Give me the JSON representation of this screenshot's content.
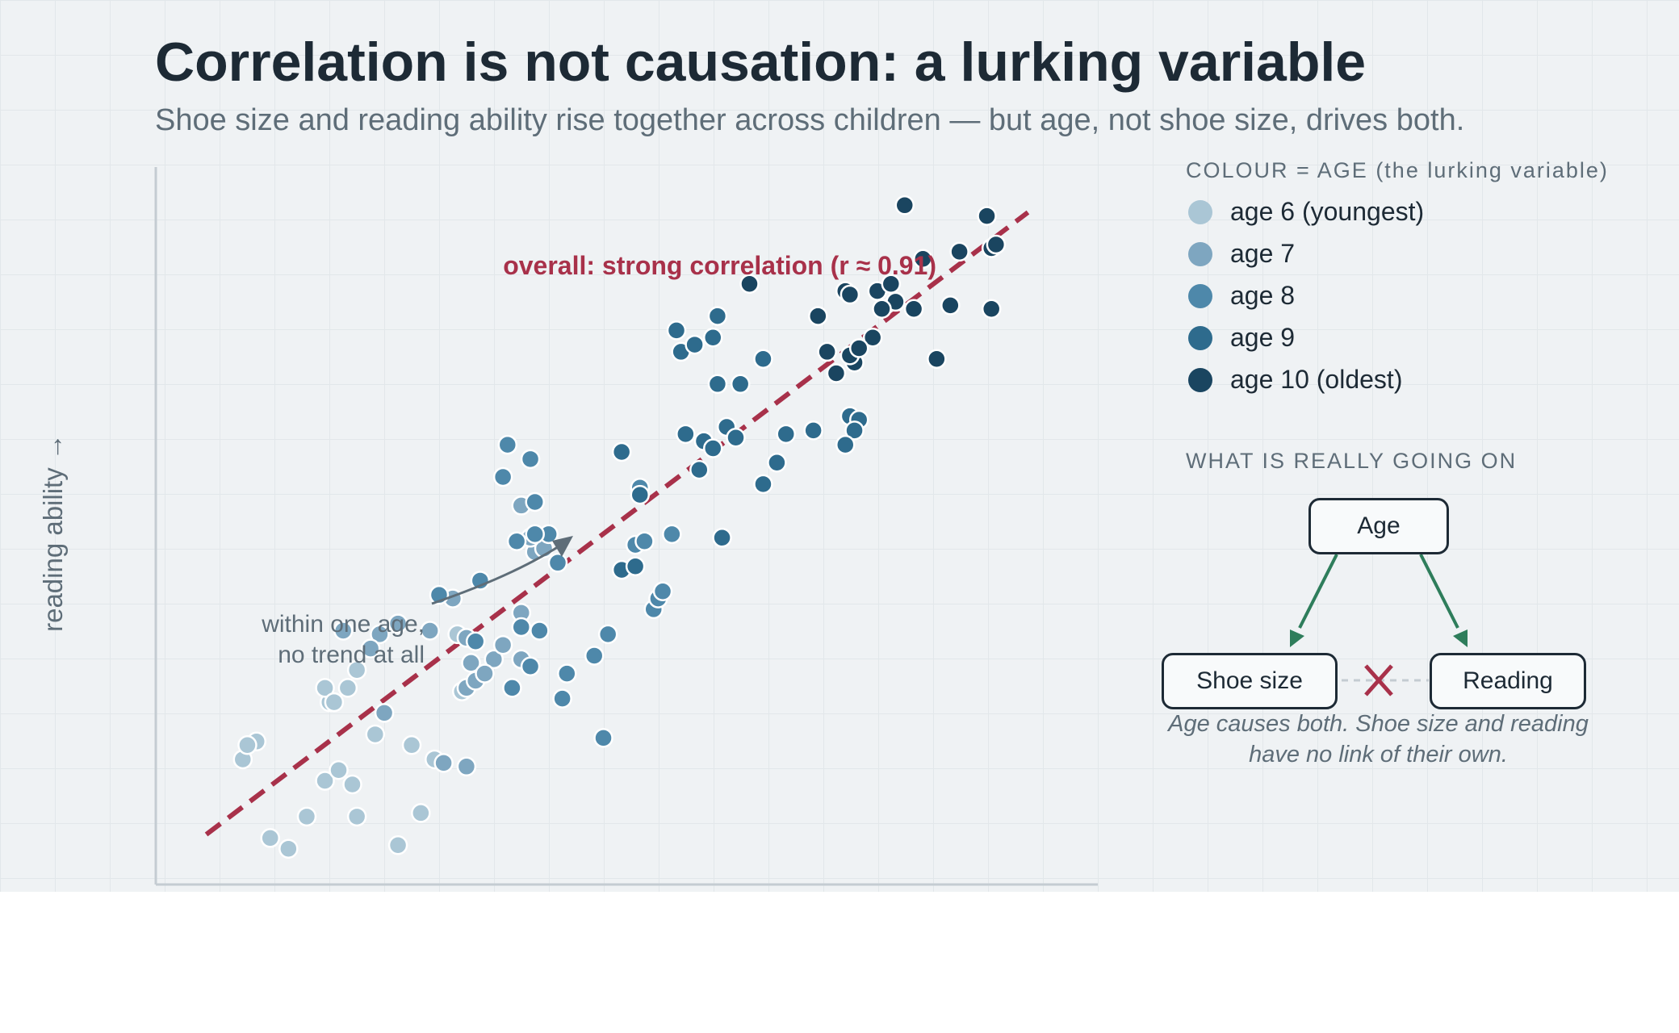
{
  "title": "Correlation is not causation: a lurking variable",
  "subtitle": "Shoe size and reading ability rise together across children — but age, not shoe size, drives both.",
  "chart_data": {
    "type": "scatter",
    "xlabel": "",
    "ylabel": "reading ability →",
    "xlim": [
      0,
      100
    ],
    "ylim": [
      0,
      100
    ],
    "grid": true,
    "trend_label": "overall: strong correlation (r ≈ 0.91)",
    "trend_line": {
      "x": [
        5,
        95
      ],
      "y": [
        7,
        94
      ]
    },
    "within_group_note": [
      "within one age,",
      "no trend at all"
    ],
    "series": [
      {
        "name": "age 6 (youngest)",
        "color": "#aac6d5",
        "points": [
          [
            10.5,
            20
          ],
          [
            9.0,
            17.5
          ],
          [
            9.5,
            19.5
          ],
          [
            12.0,
            6.5
          ],
          [
            14.0,
            5
          ],
          [
            16.0,
            9.5
          ],
          [
            18.0,
            14.5
          ],
          [
            19.5,
            16
          ],
          [
            21.0,
            14
          ],
          [
            21.5,
            9.5
          ],
          [
            23.5,
            21
          ],
          [
            20.5,
            27.5
          ],
          [
            18.5,
            25.5
          ],
          [
            18.0,
            27.5
          ],
          [
            19.0,
            25.5
          ],
          [
            26.0,
            5.5
          ],
          [
            27.5,
            19.5
          ],
          [
            28.5,
            10
          ],
          [
            30.0,
            17.5
          ],
          [
            33.0,
            27
          ],
          [
            32.5,
            35
          ],
          [
            21.5,
            30
          ]
        ]
      },
      {
        "name": "age 7",
        "color": "#7ea6c0",
        "points": [
          [
            20.0,
            35.5
          ],
          [
            24.0,
            35
          ],
          [
            26.0,
            36.5
          ],
          [
            29.5,
            35.5
          ],
          [
            31.0,
            17
          ],
          [
            33.5,
            16.5
          ],
          [
            33.5,
            27.5
          ],
          [
            33.5,
            34.5
          ],
          [
            34.0,
            31
          ],
          [
            34.5,
            28.5
          ],
          [
            23.0,
            33
          ],
          [
            36.5,
            31.5
          ],
          [
            35.5,
            29.5
          ],
          [
            32.0,
            40
          ],
          [
            37.5,
            33.5
          ],
          [
            39.5,
            31.5
          ],
          [
            39.5,
            38
          ],
          [
            41.0,
            46.5
          ],
          [
            42.0,
            47
          ],
          [
            40.5,
            48.5
          ],
          [
            39.5,
            53
          ],
          [
            24.5,
            24
          ]
        ]
      },
      {
        "name": "age 8",
        "color": "#4e88aa",
        "points": [
          [
            37.5,
            57
          ],
          [
            38.0,
            61.5
          ],
          [
            40.5,
            59.5
          ],
          [
            41.0,
            53.5
          ],
          [
            42.5,
            49
          ],
          [
            43.5,
            45
          ],
          [
            35.0,
            42.5
          ],
          [
            39.0,
            48
          ],
          [
            30.5,
            40.5
          ],
          [
            41.5,
            35.5
          ],
          [
            47.5,
            32
          ],
          [
            49.0,
            35
          ],
          [
            44.0,
            26
          ],
          [
            48.5,
            20.5
          ],
          [
            52.0,
            47.5
          ],
          [
            52.5,
            55.5
          ],
          [
            53.0,
            48
          ],
          [
            54.0,
            38.5
          ],
          [
            54.5,
            40
          ],
          [
            55.0,
            41
          ],
          [
            56.0,
            49
          ],
          [
            34.5,
            34
          ],
          [
            38.5,
            27.5
          ],
          [
            40.5,
            30.5
          ],
          [
            39.5,
            36
          ],
          [
            41.0,
            49
          ],
          [
            44.5,
            29.5
          ]
        ]
      },
      {
        "name": "age 9",
        "color": "#2e6b8d",
        "points": [
          [
            56.5,
            77.5
          ],
          [
            57.0,
            74.5
          ],
          [
            58.5,
            75.5
          ],
          [
            60.5,
            76.5
          ],
          [
            61.0,
            79.5
          ],
          [
            61.0,
            70
          ],
          [
            63.5,
            70
          ],
          [
            59.5,
            62
          ],
          [
            57.5,
            63
          ],
          [
            60.5,
            61
          ],
          [
            62.0,
            64
          ],
          [
            63.0,
            62.5
          ],
          [
            59.0,
            58
          ],
          [
            66.0,
            73.5
          ],
          [
            68.5,
            63
          ],
          [
            71.5,
            63.5
          ],
          [
            67.5,
            59
          ],
          [
            75.5,
            65.5
          ],
          [
            76.5,
            65
          ],
          [
            76.0,
            63.5
          ],
          [
            75.0,
            61.5
          ],
          [
            66.0,
            56
          ],
          [
            61.5,
            48.5
          ],
          [
            50.5,
            60.5
          ],
          [
            52.5,
            54.5
          ],
          [
            50.5,
            44
          ],
          [
            52.0,
            44.5
          ]
        ]
      },
      {
        "name": "age 10 (oldest)",
        "color": "#1a4560",
        "points": [
          [
            64.5,
            84
          ],
          [
            72.0,
            79.5
          ],
          [
            75.0,
            83
          ],
          [
            75.5,
            82.5
          ],
          [
            78.5,
            83
          ],
          [
            80.0,
            84
          ],
          [
            80.5,
            81.5
          ],
          [
            79.0,
            80.5
          ],
          [
            82.5,
            80.5
          ],
          [
            83.5,
            87.5
          ],
          [
            86.5,
            81
          ],
          [
            87.5,
            88.5
          ],
          [
            90.5,
            93.5
          ],
          [
            91.0,
            89
          ],
          [
            91.5,
            89.5
          ],
          [
            91.0,
            80.5
          ],
          [
            85.0,
            73.5
          ],
          [
            81.5,
            95
          ],
          [
            78.0,
            76.5
          ],
          [
            76.0,
            73
          ],
          [
            74.0,
            71.5
          ],
          [
            73.0,
            74.5
          ],
          [
            75.5,
            74
          ],
          [
            76.5,
            75
          ]
        ]
      }
    ]
  },
  "legend": {
    "heading": "COLOUR = AGE (the lurking variable)"
  },
  "diagram": {
    "heading": "WHAT IS REALLY GOING ON",
    "nodes": {
      "age": "Age",
      "shoe": "Shoe size",
      "reading": "Reading"
    },
    "arrow_color": "#2e7d5b",
    "no_link_color": "#a8314a",
    "caption": "Age causes both. Shoe size and reading have no link of their own."
  }
}
